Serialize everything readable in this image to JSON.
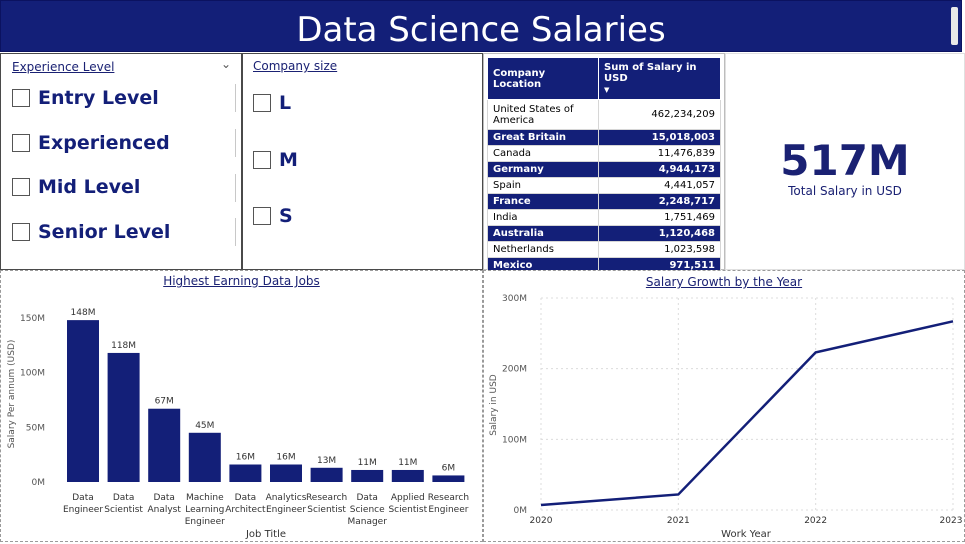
{
  "header": {
    "title": "Data Science Salaries"
  },
  "experience_slicer": {
    "title": "Experience Level",
    "options": [
      "Entry Level",
      "Experienced",
      "Mid Level",
      "Senior Level"
    ]
  },
  "company_slicer": {
    "title": "Company size",
    "options": [
      "L",
      "M",
      "S"
    ]
  },
  "location_table": {
    "columns": [
      "Company Location",
      "Sum of Salary in USD"
    ],
    "rows": [
      {
        "location": "United States of America",
        "salary": "462,234,209"
      },
      {
        "location": "Great Britain",
        "salary": "15,018,003"
      },
      {
        "location": "Canada",
        "salary": "11,476,839"
      },
      {
        "location": "Germany",
        "salary": "4,944,173"
      },
      {
        "location": "Spain",
        "salary": "4,441,057"
      },
      {
        "location": "France",
        "salary": "2,248,717"
      },
      {
        "location": "India",
        "salary": "1,751,469"
      },
      {
        "location": "Australia",
        "salary": "1,120,468"
      },
      {
        "location": "Netherlands",
        "salary": "1,023,598"
      },
      {
        "location": "Mexico",
        "salary": "971,511"
      }
    ]
  },
  "kpi": {
    "value": "517M",
    "label": "Total Salary in USD"
  },
  "colors": {
    "accent": "#131f78",
    "grid": "#dcdcdc"
  },
  "chart_data": [
    {
      "type": "bar",
      "title": "Highest Earning Data Jobs",
      "xlabel": "Job Title",
      "ylabel": "Salary Per annum (USD)",
      "categories": [
        [
          "Data",
          "Engineer"
        ],
        [
          "Data",
          "Scientist"
        ],
        [
          "Data",
          "Analyst"
        ],
        [
          "Machine",
          "Learning",
          "Engineer"
        ],
        [
          "Data",
          "Architect"
        ],
        [
          "Analytics",
          "Engineer"
        ],
        [
          "Research",
          "Scientist"
        ],
        [
          "Data",
          "Science",
          "Manager"
        ],
        [
          "Applied",
          "Scientist"
        ],
        [
          "Research",
          "Engineer"
        ]
      ],
      "values": [
        148,
        118,
        67,
        45,
        16,
        16,
        13,
        11,
        11,
        6
      ],
      "value_labels": [
        "148M",
        "118M",
        "67M",
        "45M",
        "16M",
        "16M",
        "13M",
        "11M",
        "11M",
        "6M"
      ],
      "yticks": [
        0,
        50,
        100,
        150
      ],
      "ytick_labels": [
        "0M",
        "50M",
        "100M",
        "150M"
      ],
      "ylim": [
        0,
        160
      ],
      "grid": false
    },
    {
      "type": "line",
      "title": "Salary Growth by the Year",
      "xlabel": "Work Year",
      "ylabel": "Salary in USD",
      "x": [
        "2020",
        "2021",
        "2022",
        "2023"
      ],
      "values": [
        7,
        22,
        223,
        267
      ],
      "yticks": [
        0,
        100,
        200,
        300
      ],
      "ytick_labels": [
        "0M",
        "100M",
        "200M",
        "300M"
      ],
      "ylim": [
        0,
        300
      ],
      "grid": true
    }
  ]
}
